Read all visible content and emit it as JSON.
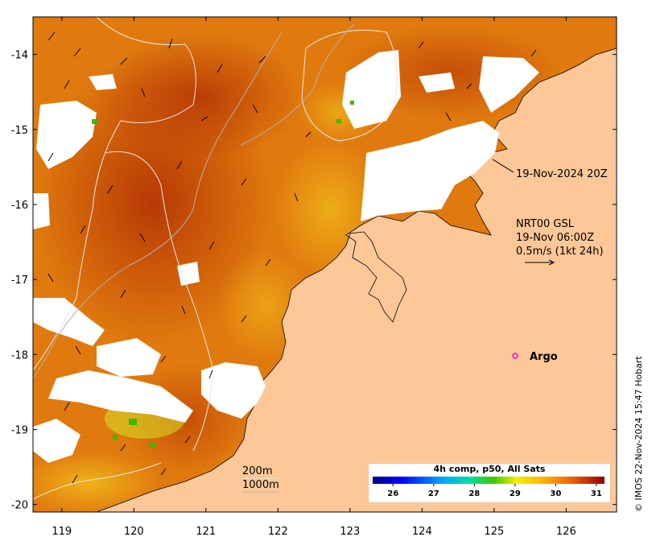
{
  "map": {
    "title_time": "19-Nov-2024 20Z",
    "current_info": {
      "line1": "NRT00 GSL",
      "line2": "19-Nov 06:00Z",
      "line3": "0.5m/s (1kt 24h)"
    },
    "argo_label": "Argo",
    "depth_contours": [
      "200m",
      "1000m"
    ],
    "credit": "© IMOS 22-Nov-2024 15:47 Hobart",
    "colorbar": {
      "title": "4h comp, p50, All Sats",
      "ticks": [
        "26",
        "27",
        "28",
        "29",
        "30",
        "31"
      ],
      "range": [
        25.5,
        31.2
      ]
    },
    "lat_ticks": [
      "-14",
      "-15",
      "-16",
      "-17",
      "-18",
      "-19",
      "-20"
    ],
    "lon_ticks": [
      "119",
      "120",
      "121",
      "122",
      "123",
      "124",
      "125",
      "126"
    ],
    "extent": {
      "lon_min": 118.6,
      "lon_max": 126.7,
      "lat_min": -20.1,
      "lat_max": -13.5
    },
    "colors": {
      "land": "#fdc797",
      "sst_warm": "#c23a06",
      "sst_mid": "#e8820c",
      "sst_cool": "#f1b514",
      "argo_marker": "#ff00ff"
    }
  }
}
